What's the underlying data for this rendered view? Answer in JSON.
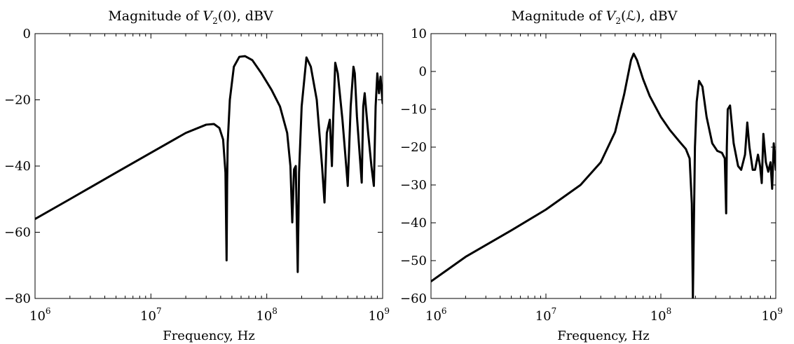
{
  "chart_data": [
    {
      "type": "line",
      "title": {
        "prefix": "Magnitude of ",
        "variable": "V",
        "subscript": "2",
        "argument": "(0)",
        "suffix": ", dBV"
      },
      "xlabel": "Frequency, Hz",
      "ylabel": "",
      "xscale": "log",
      "xlim": [
        1000000,
        1000000000
      ],
      "ylim": [
        -80,
        0
      ],
      "xticks": [
        {
          "base": "10",
          "exp": "6"
        },
        {
          "base": "10",
          "exp": "7"
        },
        {
          "base": "10",
          "exp": "8"
        },
        {
          "base": "10",
          "exp": "9"
        }
      ],
      "yticks": [
        "0",
        "−20",
        "−40",
        "−60",
        "−80"
      ],
      "grid": false,
      "series": [
        {
          "color": "#000000",
          "x": [
            1000000.0,
            2000000.0,
            5000000.0,
            10000000.0,
            20000000.0,
            30000000.0,
            35000000.0,
            39000000.0,
            42000000.0,
            44000000.0,
            45000000.0,
            45500000.0,
            46000000.0,
            48000000.0,
            52000000.0,
            58000000.0,
            65000000.0,
            75000000.0,
            90000000.0,
            110000000.0,
            130000000.0,
            150000000.0,
            160000000.0,
            166000000.0,
            172000000.0,
            178000000.0,
            185000000.0,
            190000000.0,
            200000000.0,
            220000000.0,
            240000000.0,
            270000000.0,
            300000000.0,
            315000000.0,
            330000000.0,
            350000000.0,
            365000000.0,
            375000000.0,
            390000000.0,
            410000000.0,
            450000000.0,
            485000000.0,
            500000000.0,
            530000000.0,
            560000000.0,
            575000000.0,
            600000000.0,
            660000000.0,
            680000000.0,
            700000000.0,
            750000000.0,
            800000000.0,
            840000000.0,
            870000000.0,
            900000000.0,
            930000000.0,
            960000000.0,
            1000000000.0
          ],
          "y": [
            -56,
            -50,
            -42,
            -36,
            -30,
            -27.5,
            -27.3,
            -28.5,
            -32,
            -42,
            -68.5,
            -45,
            -33,
            -20,
            -10,
            -7,
            -6.8,
            -8,
            -12,
            -17,
            -22,
            -30,
            -40,
            -57,
            -41,
            -40,
            -72,
            -42,
            -22,
            -7.2,
            -10,
            -20,
            -40,
            -51,
            -30,
            -26,
            -40,
            -25,
            -8.8,
            -12,
            -26,
            -40,
            -46,
            -22,
            -10,
            -12,
            -25,
            -45,
            -22,
            -18,
            -30,
            -40,
            -46,
            -22,
            -12,
            -18,
            -13,
            -21
          ]
        }
      ]
    },
    {
      "type": "line",
      "title": {
        "prefix": "Magnitude of ",
        "variable": "V",
        "subscript": "2",
        "argument": "(ℒ)",
        "suffix": ", dBV"
      },
      "xlabel": "Frequency, Hz",
      "ylabel": "",
      "xscale": "log",
      "xlim": [
        1000000,
        1000000000
      ],
      "ylim": [
        -60,
        10
      ],
      "xticks": [
        {
          "base": "10",
          "exp": "6"
        },
        {
          "base": "10",
          "exp": "7"
        },
        {
          "base": "10",
          "exp": "8"
        },
        {
          "base": "10",
          "exp": "9"
        }
      ],
      "yticks": [
        "10",
        "0",
        "−10",
        "−20",
        "−30",
        "−40",
        "−50",
        "−60"
      ],
      "grid": false,
      "series": [
        {
          "color": "#000000",
          "x": [
            1000000.0,
            2000000.0,
            5000000.0,
            10000000.0,
            20000000.0,
            30000000.0,
            40000000.0,
            48000000.0,
            55000000.0,
            58000000.0,
            62000000.0,
            70000000.0,
            80000000.0,
            100000000.0,
            120000000.0,
            145000000.0,
            165000000.0,
            178000000.0,
            186000000.0,
            190000000.0,
            193000000.0,
            198000000.0,
            205000000.0,
            215000000.0,
            230000000.0,
            250000000.0,
            280000000.0,
            310000000.0,
            340000000.0,
            360000000.0,
            370000000.0,
            375000000.0,
            382000000.0,
            400000000.0,
            430000000.0,
            470000000.0,
            500000000.0,
            540000000.0,
            565000000.0,
            590000000.0,
            630000000.0,
            660000000.0,
            700000000.0,
            730000000.0,
            755000000.0,
            780000000.0,
            820000000.0,
            860000000.0,
            900000000.0,
            930000000.0,
            960000000.0,
            1000000000.0
          ],
          "y": [
            -55.5,
            -49,
            -42,
            -36.5,
            -30,
            -24,
            -16,
            -6,
            3,
            4.7,
            3,
            -2,
            -6.5,
            -12,
            -15.5,
            -18.5,
            -20.5,
            -23,
            -35,
            -60,
            -45,
            -20,
            -8,
            -2.5,
            -4,
            -12,
            -19,
            -21,
            -21.5,
            -23,
            -37.5,
            -20,
            -10,
            -9,
            -19,
            -25,
            -26,
            -22,
            -13.5,
            -20,
            -26,
            -26,
            -22,
            -25,
            -29.5,
            -16.5,
            -24,
            -26.5,
            -24,
            -31,
            -19,
            -26
          ]
        }
      ]
    }
  ]
}
